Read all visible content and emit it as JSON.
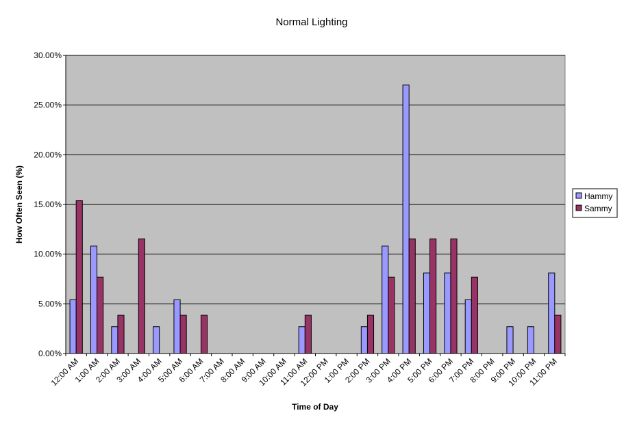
{
  "chart_data": {
    "type": "bar",
    "title": "Normal Lighting",
    "xlabel": "Time of Day",
    "ylabel": "How Often Seen (%)",
    "ylim": [
      0,
      30
    ],
    "y_ticks": [
      "0.00%",
      "5.00%",
      "10.00%",
      "15.00%",
      "20.00%",
      "25.00%",
      "30.00%"
    ],
    "grid": true,
    "legend_position": "right",
    "plot_background": "#c0c0c0",
    "categories": [
      "12:00 AM",
      "1:00 AM",
      "2:00 AM",
      "3:00 AM",
      "4:00 AM",
      "5:00 AM",
      "6:00 AM",
      "7:00 AM",
      "8:00 AM",
      "9:00 AM",
      "10:00 AM",
      "11:00 AM",
      "12:00 PM",
      "1:00 PM",
      "2:00 PM",
      "3:00 PM",
      "4:00 PM",
      "5:00 PM",
      "6:00 PM",
      "7:00 PM",
      "8:00 PM",
      "9:00 PM",
      "10:00 PM",
      "11:00 PM"
    ],
    "series": [
      {
        "name": "Hammy",
        "color": "#9999ff",
        "values": [
          5.41,
          10.81,
          2.7,
          0,
          2.7,
          5.41,
          0,
          0,
          0,
          0,
          0,
          2.7,
          0,
          0,
          2.7,
          10.81,
          27.03,
          8.11,
          8.11,
          5.41,
          0,
          2.7,
          2.7,
          8.11
        ]
      },
      {
        "name": "Sammy",
        "color": "#993366",
        "values": [
          15.38,
          7.69,
          3.85,
          11.54,
          0,
          3.85,
          3.85,
          0,
          0,
          0,
          0,
          3.85,
          0,
          0,
          3.85,
          7.69,
          11.54,
          11.54,
          11.54,
          7.69,
          0,
          0,
          0,
          3.85
        ]
      }
    ]
  }
}
